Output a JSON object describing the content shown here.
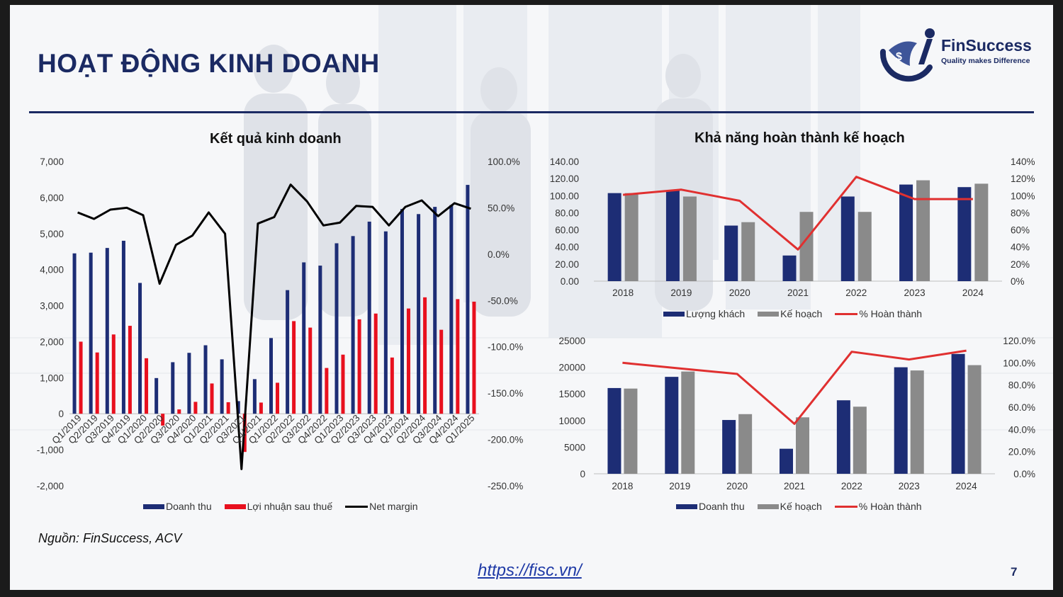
{
  "slide": {
    "title": "HOẠT ĐỘNG KINH DOANH",
    "source": "Nguồn: FinSuccess, ACV",
    "website": "https://fisc.vn/",
    "page_number": "7"
  },
  "logo": {
    "name": "FinSuccess",
    "tagline": "Quality makes Difference"
  },
  "colors": {
    "navy": "#1b2a63",
    "bar_navy": "#1d2d75",
    "red": "#e8101e",
    "gray": "#8a8a8a",
    "black": "#000000",
    "red_line": "#e03030"
  },
  "chart_data": [
    {
      "type": "bar",
      "title": "Kết quả kinh doanh",
      "categories": [
        "Q1/2019",
        "Q2/2019",
        "Q3/2019",
        "Q4/2019",
        "Q1/2020",
        "Q2/2020",
        "Q3/2020",
        "Q4/2020",
        "Q1/2021",
        "Q2/2021",
        "Q3/2021",
        "Q4/2021",
        "Q1/2022",
        "Q2/2022",
        "Q3/2022",
        "Q4/2022",
        "Q1/2023",
        "Q2/2023",
        "Q3/2023",
        "Q4/2023",
        "Q1/2024",
        "Q2/2024",
        "Q3/2024",
        "Q4/2024",
        "Q1/2025"
      ],
      "series": [
        {
          "name": "Doanh thu",
          "kind": "bar",
          "axis": "left",
          "color": "#1d2d75",
          "values": [
            4450,
            4470,
            4600,
            4800,
            3630,
            990,
            1430,
            1690,
            1900,
            1510,
            350,
            960,
            2100,
            3430,
            4200,
            4110,
            4730,
            4930,
            5330,
            5060,
            5680,
            5540,
            5740,
            5790,
            6350
          ]
        },
        {
          "name": "Lợi nhuận sau thuế",
          "kind": "bar",
          "axis": "left",
          "color": "#e8101e",
          "values": [
            2000,
            1700,
            2200,
            2440,
            1540,
            -330,
            120,
            330,
            840,
            320,
            -1060,
            310,
            860,
            2570,
            2390,
            1270,
            1640,
            2620,
            2780,
            1560,
            2920,
            3230,
            2330,
            3180,
            3110
          ]
        },
        {
          "name": "Net margin",
          "kind": "line",
          "axis": "right",
          "color": "#000000",
          "values": [
            45,
            38,
            48,
            50,
            42,
            -32,
            10,
            20,
            45,
            22,
            -232,
            33,
            40,
            75,
            57,
            31,
            34,
            52,
            51,
            31,
            51,
            58,
            41,
            55,
            49
          ]
        }
      ],
      "ylim": [
        -2000,
        7000
      ],
      "yticks": [
        "7,000",
        "6,000",
        "5,000",
        "4,000",
        "3,000",
        "2,000",
        "1,000",
        "0",
        "-1,000",
        "-2,000"
      ],
      "y2lim": [
        -250,
        100
      ],
      "y2ticks": [
        "100.0%",
        "50.0%",
        "0.0%",
        "-50.0%",
        "-100.0%",
        "-150.0%",
        "-200.0%",
        "-250.0%"
      ],
      "legend": "bottom"
    },
    {
      "type": "bar",
      "title": "Khả năng hoàn thành kế hoạch",
      "categories": [
        "2018",
        "2019",
        "2020",
        "2021",
        "2022",
        "2023",
        "2024"
      ],
      "series": [
        {
          "name": "Lượng khách",
          "kind": "bar",
          "axis": "left",
          "color": "#1d2d75",
          "values": [
            103,
            106,
            65,
            30,
            99,
            113,
            110
          ]
        },
        {
          "name": "Kế hoạch",
          "kind": "bar",
          "axis": "left",
          "color": "#8a8a8a",
          "values": [
            103,
            99,
            69,
            81,
            81,
            118,
            114
          ]
        },
        {
          "name": "% Hoàn thành",
          "kind": "line",
          "axis": "right",
          "color": "#e03030",
          "values": [
            101,
            107,
            94,
            37,
            122,
            96,
            96
          ]
        }
      ],
      "ylim": [
        0,
        140
      ],
      "yticks": [
        "140.00",
        "120.00",
        "100.00",
        "80.00",
        "60.00",
        "40.00",
        "20.00",
        "0.00"
      ],
      "y2lim": [
        0,
        140
      ],
      "y2ticks": [
        "140%",
        "120%",
        "100%",
        "80%",
        "60%",
        "40%",
        "20%",
        "0%"
      ],
      "legend": "bottom"
    },
    {
      "type": "bar",
      "categories": [
        "2018",
        "2019",
        "2020",
        "2021",
        "2022",
        "2023",
        "2024"
      ],
      "series": [
        {
          "name": "Doanh thu",
          "kind": "bar",
          "axis": "left",
          "color": "#1d2d75",
          "values": [
            16100,
            18200,
            10100,
            4700,
            13800,
            20000,
            22500
          ]
        },
        {
          "name": "Kế hoạch",
          "kind": "bar",
          "axis": "left",
          "color": "#8a8a8a",
          "values": [
            16000,
            19200,
            11200,
            10600,
            12600,
            19400,
            20400
          ]
        },
        {
          "name": "% Hoàn thành",
          "kind": "line",
          "axis": "right",
          "color": "#e03030",
          "values": [
            100,
            95,
            90,
            45,
            110,
            103,
            111
          ]
        }
      ],
      "ylim": [
        0,
        25000
      ],
      "yticks": [
        "25000",
        "20000",
        "15000",
        "10000",
        "5000",
        "0"
      ],
      "y2lim": [
        0,
        120
      ],
      "y2ticks": [
        "120.0%",
        "100.0%",
        "80.0%",
        "60.0%",
        "40.0%",
        "20.0%",
        "0.0%"
      ],
      "legend": "bottom"
    }
  ]
}
